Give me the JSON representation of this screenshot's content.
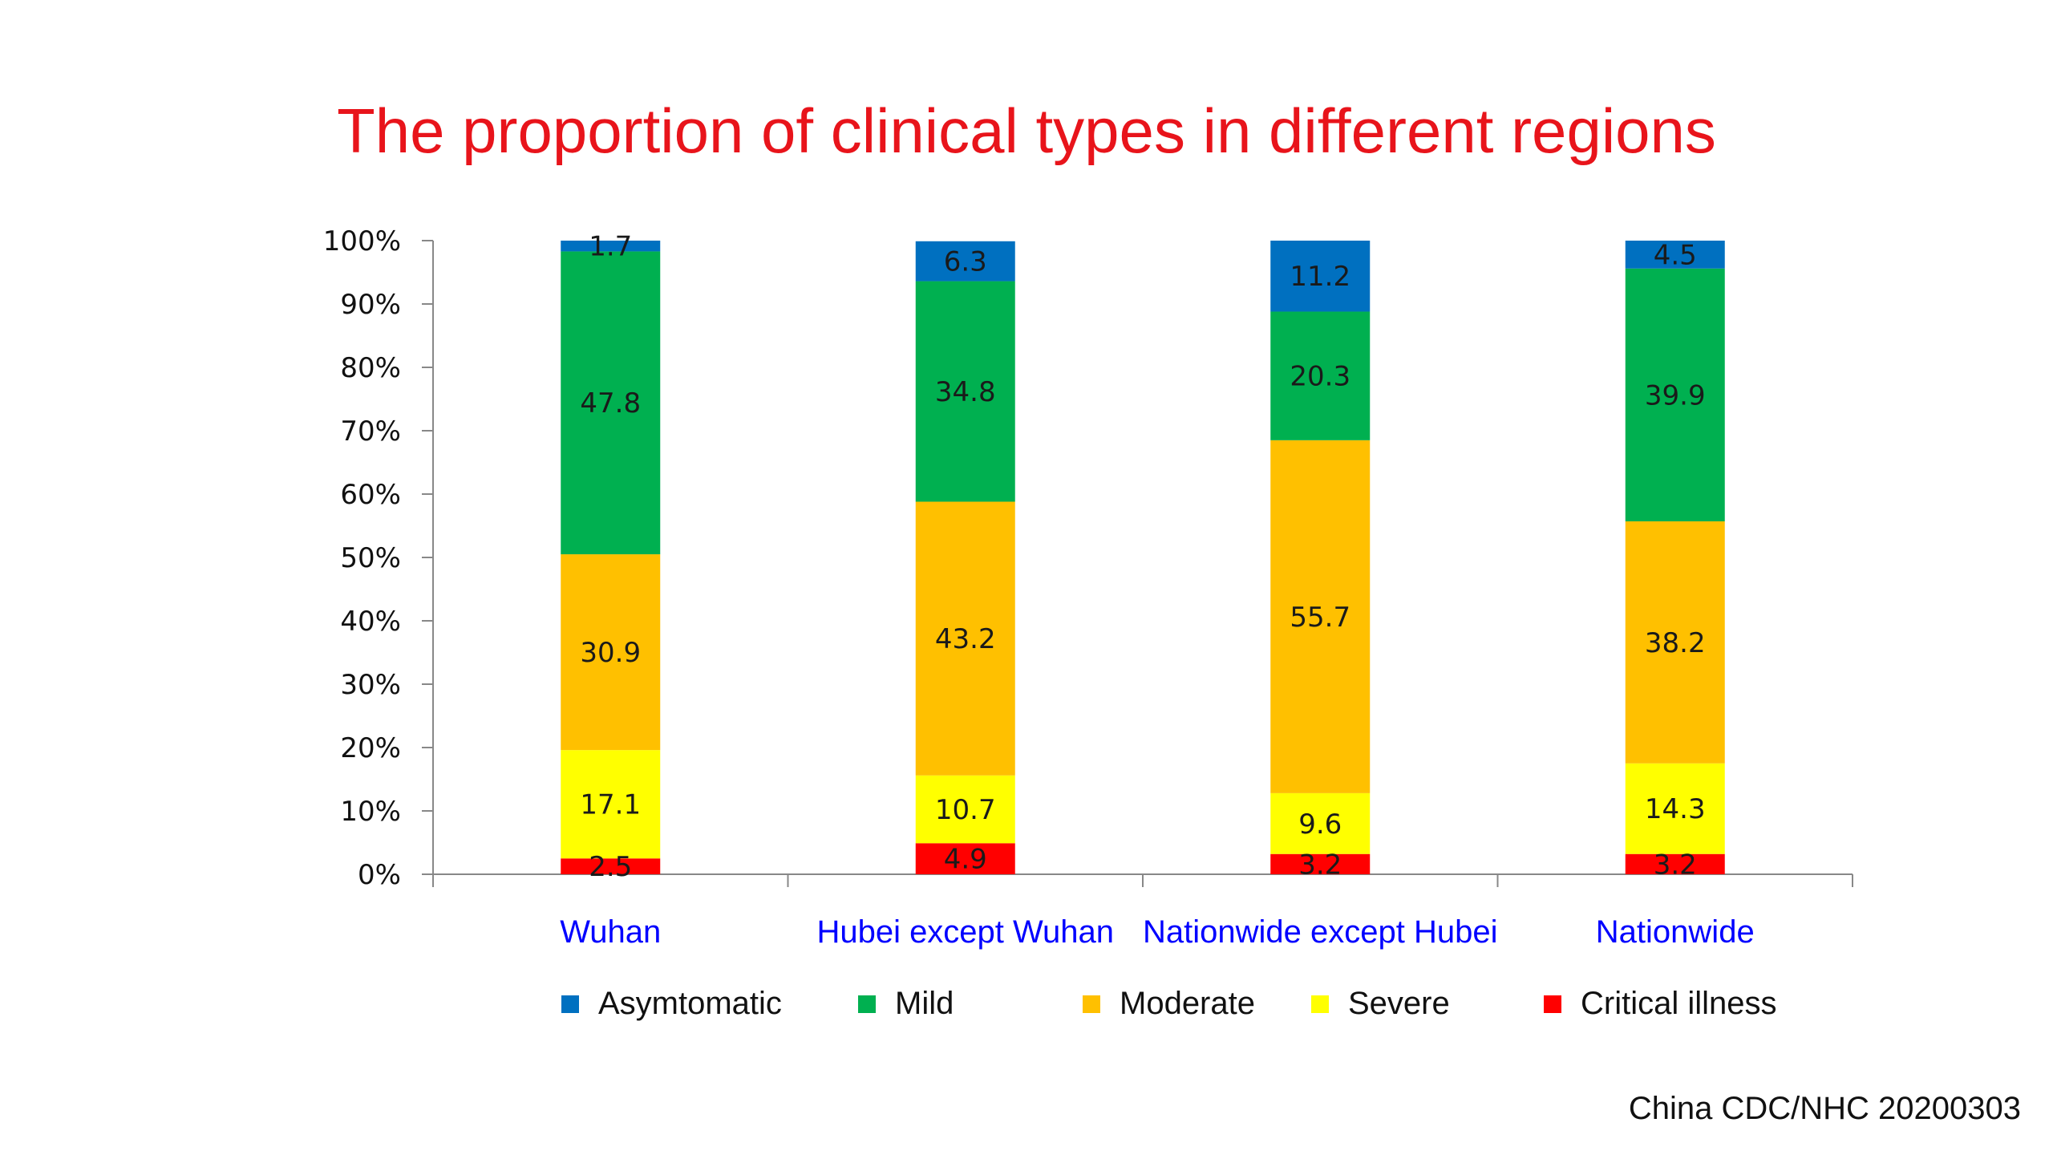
{
  "chart_data": {
    "type": "stacked-bar",
    "title": "The proportion of clinical types in different regions",
    "categories": [
      "Wuhan",
      "Hubei except  Wuhan",
      "Nationwide except Hubei",
      "Nationwide"
    ],
    "series": [
      {
        "name": "Critical illness",
        "color": "#ff0000",
        "values": [
          2.5,
          4.9,
          3.2,
          3.2
        ]
      },
      {
        "name": "Severe",
        "color": "#ffff00",
        "values": [
          17.1,
          10.7,
          9.6,
          14.3
        ]
      },
      {
        "name": "Moderate",
        "color": "#ffc000",
        "values": [
          30.9,
          43.2,
          55.7,
          38.2
        ]
      },
      {
        "name": "Mild",
        "color": "#00b050",
        "values": [
          47.8,
          34.8,
          20.3,
          39.9
        ]
      },
      {
        "name": "Asymtomatic",
        "color": "#0070c0",
        "values": [
          1.7,
          6.3,
          11.2,
          4.5
        ]
      }
    ],
    "legend_order": [
      "Asymtomatic",
      "Mild",
      "Moderate",
      "Severe",
      "Critical illness"
    ],
    "y_ticks": [
      "0%",
      "10%",
      "20%",
      "30%",
      "40%",
      "50%",
      "60%",
      "70%",
      "80%",
      "90%",
      "100%"
    ],
    "ylim": [
      0,
      100
    ],
    "grid": false,
    "legend_position": "bottom",
    "category_label_color": "#0000ff"
  },
  "source": "China CDC/NHC 20200303"
}
